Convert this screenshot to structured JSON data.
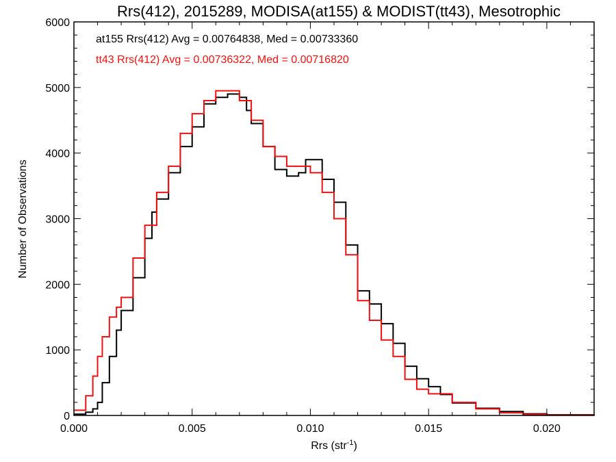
{
  "chart_data": {
    "type": "line",
    "title": "Rrs(412), 2015289, MODISA(at155) & MODIST(tt43), Mesotrophic",
    "xlabel_base": "Rrs (str",
    "xlabel_sup": "-1",
    "xlabel_close": ")",
    "ylabel": "Number of Observations",
    "xlim": [
      0.0,
      0.022
    ],
    "ylim": [
      0,
      6000
    ],
    "x_ticks": [
      "0.000",
      "0.005",
      "0.010",
      "0.015",
      "0.020"
    ],
    "y_ticks": [
      "0",
      "1000",
      "2000",
      "3000",
      "4000",
      "5000",
      "6000"
    ],
    "stats": [
      {
        "text": "at155 Rrs(412) Avg = 0.00764838, Med = 0.00733360",
        "color": "#000000"
      },
      {
        "text": "tt43 Rrs(412) Avg = 0.00736322, Med = 0.00716820",
        "color": "#ee1111"
      }
    ],
    "series": [
      {
        "color": "#000000",
        "x": [
          0.0,
          0.0005,
          0.0008,
          0.001,
          0.0012,
          0.0015,
          0.0018,
          0.002,
          0.0025,
          0.003,
          0.0033,
          0.0035,
          0.004,
          0.0045,
          0.005,
          0.0055,
          0.006,
          0.0065,
          0.007,
          0.0073,
          0.0075,
          0.008,
          0.0085,
          0.009,
          0.0095,
          0.0098,
          0.01,
          0.0105,
          0.011,
          0.0115,
          0.012,
          0.0125,
          0.013,
          0.0135,
          0.014,
          0.0145,
          0.015,
          0.0155,
          0.016,
          0.017,
          0.018,
          0.019,
          0.02,
          0.022
        ],
        "y": [
          20,
          50,
          100,
          200,
          500,
          900,
          1300,
          1600,
          2100,
          2700,
          3100,
          3300,
          3700,
          4100,
          4400,
          4750,
          4850,
          4900,
          4850,
          4650,
          4450,
          4100,
          3750,
          3650,
          3700,
          3900,
          3900,
          3600,
          3250,
          2600,
          1900,
          1700,
          1400,
          1100,
          750,
          560,
          440,
          320,
          190,
          110,
          60,
          25,
          10,
          5
        ]
      },
      {
        "color": "#ee1111",
        "x": [
          0.0,
          0.0005,
          0.0008,
          0.001,
          0.0012,
          0.0015,
          0.0018,
          0.002,
          0.0025,
          0.003,
          0.0035,
          0.004,
          0.0045,
          0.005,
          0.0055,
          0.006,
          0.0065,
          0.007,
          0.0075,
          0.008,
          0.0085,
          0.009,
          0.0095,
          0.01,
          0.0105,
          0.011,
          0.0115,
          0.012,
          0.0125,
          0.013,
          0.0135,
          0.014,
          0.0145,
          0.015,
          0.016,
          0.017,
          0.018,
          0.019,
          0.02,
          0.022
        ],
        "y": [
          80,
          300,
          600,
          900,
          1200,
          1500,
          1650,
          1800,
          2400,
          2900,
          3400,
          3800,
          4300,
          4600,
          4800,
          4950,
          4950,
          4800,
          4500,
          4100,
          3950,
          3800,
          3800,
          3700,
          3400,
          3000,
          2450,
          1750,
          1450,
          1150,
          900,
          550,
          400,
          330,
          200,
          100,
          40,
          15,
          5,
          3
        ]
      }
    ]
  }
}
